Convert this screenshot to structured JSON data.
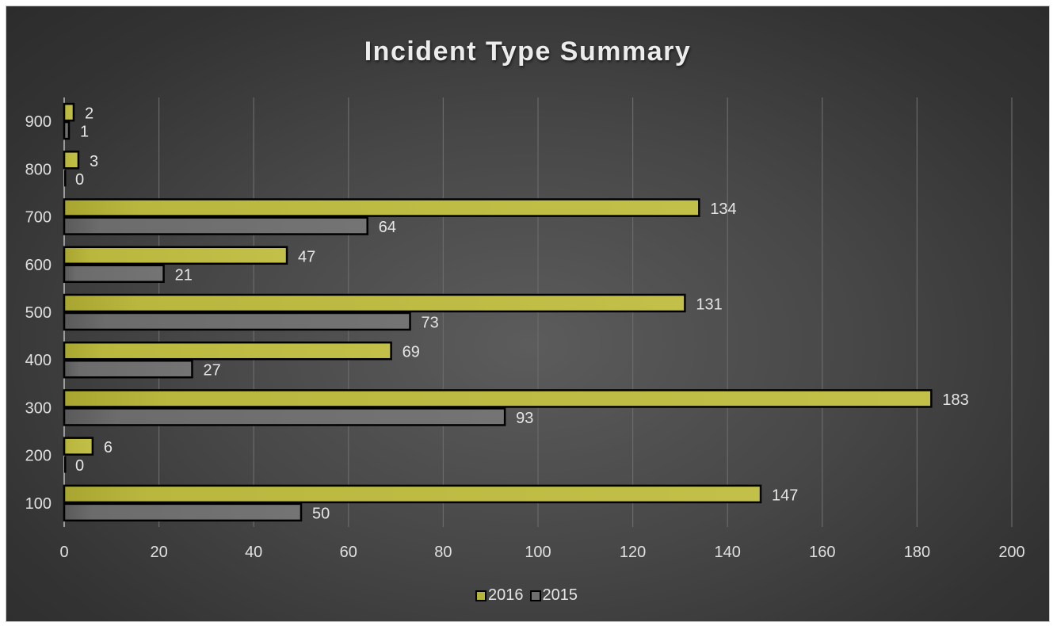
{
  "chart_data": {
    "type": "bar",
    "orientation": "horizontal",
    "title": "Incident Type Summary",
    "categories": [
      "100",
      "200",
      "300",
      "400",
      "500",
      "600",
      "700",
      "800",
      "900"
    ],
    "series": [
      {
        "name": "2016",
        "values": [
          147,
          6,
          183,
          69,
          131,
          47,
          134,
          3,
          2
        ],
        "color": "#b5b33a"
      },
      {
        "name": "2015",
        "values": [
          50,
          0,
          93,
          27,
          73,
          21,
          64,
          0,
          1
        ],
        "color": "#6e6e6e"
      }
    ],
    "xlim": [
      0,
      200
    ],
    "x_ticks": [
      "0",
      "20",
      "40",
      "60",
      "80",
      "100",
      "120",
      "140",
      "160",
      "180",
      "200"
    ],
    "grid": "vertical",
    "legend_position": "bottom"
  }
}
